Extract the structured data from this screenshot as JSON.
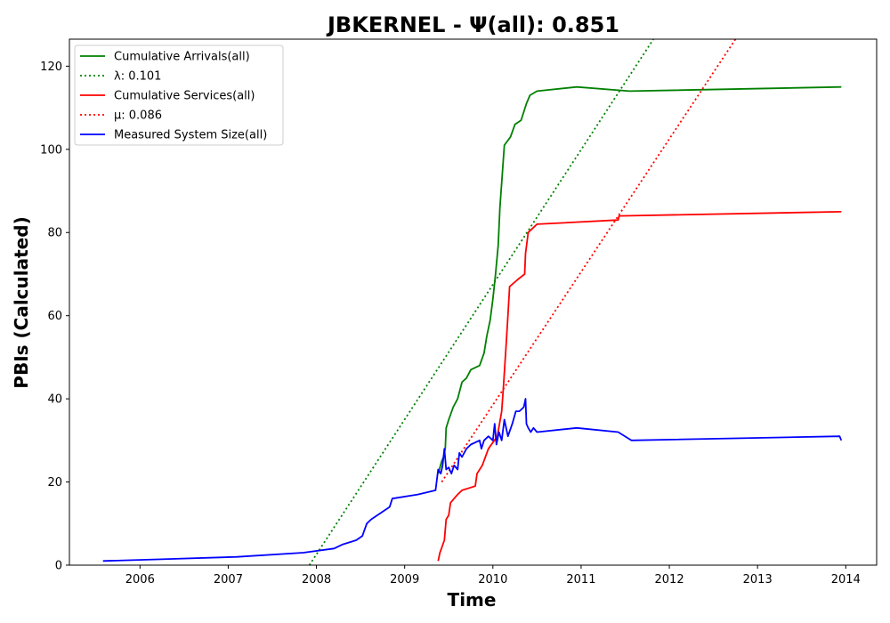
{
  "chart_data": {
    "type": "line",
    "title": "JBKERNEL -  Ψ(all): 0.851",
    "xlabel": "Time",
    "ylabel": "PBIs (Calculated)",
    "xlim": [
      2005.2,
      2014.35
    ],
    "ylim": [
      0,
      126.5
    ],
    "xticks": [
      2006,
      2007,
      2008,
      2009,
      2010,
      2011,
      2012,
      2013,
      2014
    ],
    "yticks": [
      0,
      20,
      40,
      60,
      80,
      100,
      120
    ],
    "grid": false,
    "legend_position": "top-left",
    "series": [
      {
        "name": "Cumulative Arrivals(all)",
        "color": "#008000",
        "style": "solid",
        "points": [
          [
            2009.38,
            22
          ],
          [
            2009.42,
            25
          ],
          [
            2009.44,
            26
          ],
          [
            2009.46,
            28
          ],
          [
            2009.47,
            33
          ],
          [
            2009.5,
            35
          ],
          [
            2009.55,
            38
          ],
          [
            2009.6,
            40
          ],
          [
            2009.65,
            44
          ],
          [
            2009.7,
            45
          ],
          [
            2009.75,
            47
          ],
          [
            2009.85,
            48
          ],
          [
            2009.9,
            51
          ],
          [
            2009.93,
            55
          ],
          [
            2009.97,
            59
          ],
          [
            2010.0,
            64
          ],
          [
            2010.03,
            70
          ],
          [
            2010.06,
            77
          ],
          [
            2010.08,
            86
          ],
          [
            2010.1,
            92
          ],
          [
            2010.13,
            101
          ],
          [
            2010.2,
            103
          ],
          [
            2010.25,
            106
          ],
          [
            2010.32,
            107
          ],
          [
            2010.38,
            111
          ],
          [
            2010.42,
            113
          ],
          [
            2010.5,
            114
          ],
          [
            2010.95,
            115
          ],
          [
            2011.55,
            114
          ],
          [
            2013.95,
            115
          ]
        ]
      },
      {
        "name": "λ: 0.101",
        "color": "#008000",
        "style": "dotted",
        "points": [
          [
            2007.92,
            0
          ],
          [
            2011.82,
            126.5
          ]
        ]
      },
      {
        "name": "Cumulative Services(all)",
        "color": "#ff0000",
        "style": "solid",
        "points": [
          [
            2009.38,
            1
          ],
          [
            2009.4,
            3
          ],
          [
            2009.45,
            6
          ],
          [
            2009.47,
            11
          ],
          [
            2009.5,
            12
          ],
          [
            2009.52,
            15
          ],
          [
            2009.6,
            17
          ],
          [
            2009.65,
            18
          ],
          [
            2009.8,
            19
          ],
          [
            2009.82,
            22
          ],
          [
            2009.88,
            24
          ],
          [
            2009.95,
            28
          ],
          [
            2010.05,
            31
          ],
          [
            2010.1,
            37
          ],
          [
            2010.12,
            43
          ],
          [
            2010.15,
            53
          ],
          [
            2010.17,
            60
          ],
          [
            2010.19,
            67
          ],
          [
            2010.3,
            69
          ],
          [
            2010.36,
            70
          ],
          [
            2010.37,
            75
          ],
          [
            2010.4,
            80
          ],
          [
            2010.5,
            82
          ],
          [
            2011.42,
            83
          ],
          [
            2011.43,
            84
          ],
          [
            2013.95,
            85
          ]
        ]
      },
      {
        "name": "μ: 0.086",
        "color": "#ff0000",
        "style": "dotted",
        "points": [
          [
            2009.42,
            20
          ],
          [
            2012.75,
            126.5
          ]
        ]
      },
      {
        "name": "Measured System Size(all)",
        "color": "#0000ff",
        "style": "solid",
        "points": [
          [
            2005.58,
            1
          ],
          [
            2006.2,
            1.4
          ],
          [
            2007.1,
            2
          ],
          [
            2007.85,
            3
          ],
          [
            2008.2,
            4
          ],
          [
            2008.3,
            5
          ],
          [
            2008.45,
            6
          ],
          [
            2008.52,
            7
          ],
          [
            2008.57,
            10
          ],
          [
            2008.62,
            11
          ],
          [
            2008.83,
            14
          ],
          [
            2008.86,
            16
          ],
          [
            2009.15,
            17
          ],
          [
            2009.35,
            18
          ],
          [
            2009.38,
            23
          ],
          [
            2009.41,
            22
          ],
          [
            2009.43,
            24
          ],
          [
            2009.45,
            28
          ],
          [
            2009.47,
            23
          ],
          [
            2009.5,
            23.5
          ],
          [
            2009.53,
            22
          ],
          [
            2009.56,
            24
          ],
          [
            2009.6,
            23
          ],
          [
            2009.62,
            27
          ],
          [
            2009.65,
            26
          ],
          [
            2009.7,
            28
          ],
          [
            2009.75,
            29
          ],
          [
            2009.85,
            30
          ],
          [
            2009.87,
            28
          ],
          [
            2009.9,
            30
          ],
          [
            2009.95,
            31
          ],
          [
            2010.0,
            30
          ],
          [
            2010.02,
            34
          ],
          [
            2010.04,
            29
          ],
          [
            2010.07,
            32
          ],
          [
            2010.1,
            30
          ],
          [
            2010.13,
            35
          ],
          [
            2010.17,
            31
          ],
          [
            2010.22,
            34
          ],
          [
            2010.26,
            37
          ],
          [
            2010.3,
            37
          ],
          [
            2010.35,
            38
          ],
          [
            2010.37,
            40
          ],
          [
            2010.38,
            34
          ],
          [
            2010.4,
            33
          ],
          [
            2010.43,
            32
          ],
          [
            2010.46,
            33
          ],
          [
            2010.5,
            32
          ],
          [
            2010.95,
            33
          ],
          [
            2011.42,
            32
          ],
          [
            2011.57,
            30
          ],
          [
            2013.93,
            31
          ],
          [
            2013.95,
            30
          ]
        ]
      }
    ]
  }
}
